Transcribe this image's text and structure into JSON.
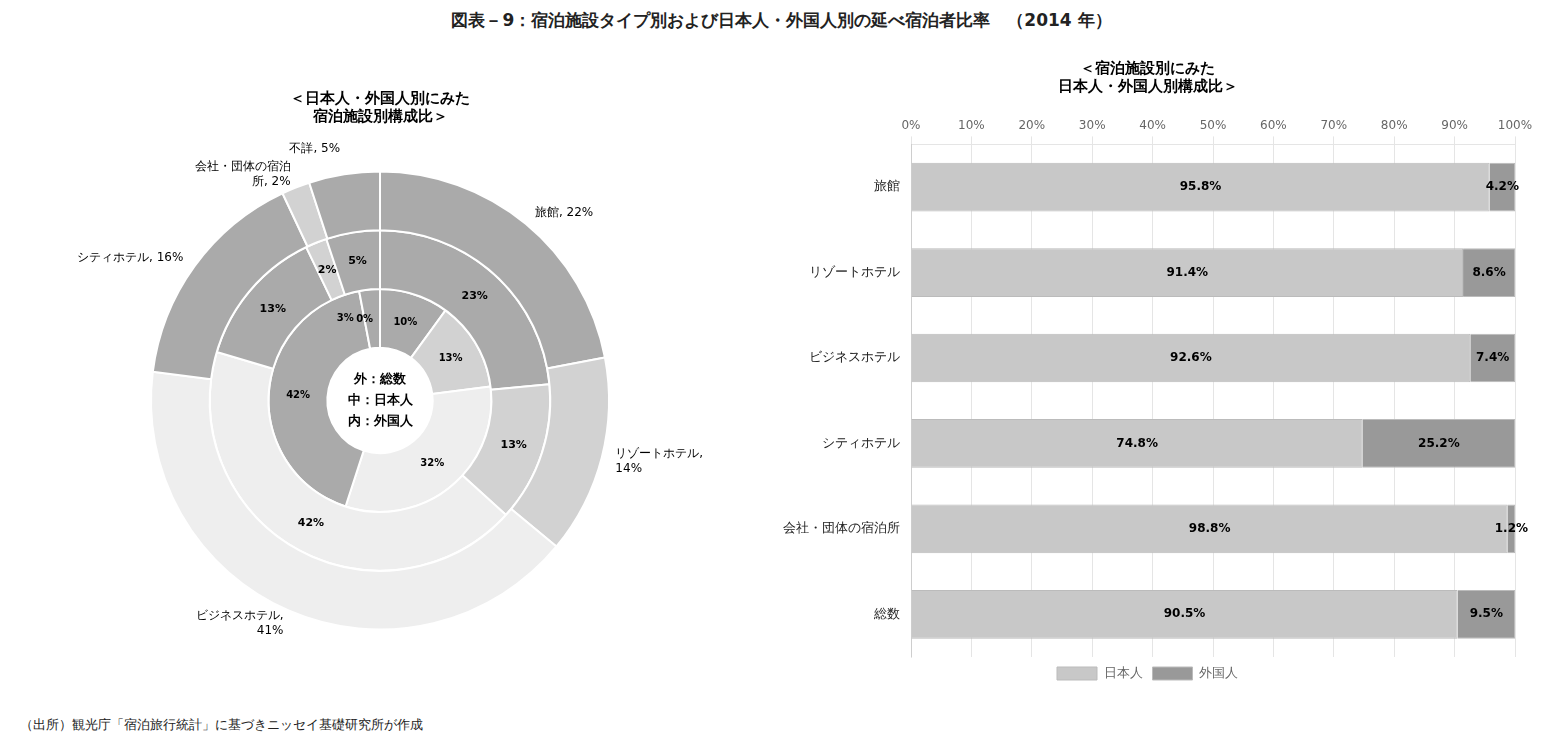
{
  "chart_data": [
    {
      "type": "doughnut",
      "title": "図表－9：宿泊施設タイプ別および日本人・外国人別の延べ宿泊者比率　（2014 年）",
      "subtitle": "＜日本人・外国人別にみた\n宿泊施設別構成比＞",
      "annotations": [
        "外：総数\n中：日本人\n内：外国人",
        "（出所）観光庁「宿泊旅行統計」に基づきニッセイ基礎研究所が作成"
      ],
      "data_labels": true,
      "series": [
        {
          "values": [
            22,
            14,
            41,
            16,
            2,
            5
          ],
          "value_labels": [
            "旅館, 22%",
            "リゾートホテル,\n14%",
            "ビジネスホテル,\n41%",
            "シティホテル, 16%",
            "会社・団体の宿泊\n所, 2%",
            "不詳, 5%"
          ],
          "colors": [
            "#aaaaaa",
            "#d2d2d2",
            "#eeeeee",
            "#aaaaaa",
            "#d2d2d2",
            "#aaaaaa"
          ]
        },
        {
          "values": [
            23,
            13,
            42,
            13,
            2,
            5
          ],
          "value_labels": [
            "23%",
            "13%",
            "42%",
            "13%",
            "2%",
            "5%"
          ],
          "colors": [
            "#aaaaaa",
            "#d2d2d2",
            "#eeeeee",
            "#aaaaaa",
            "#d2d2d2",
            "#aaaaaa"
          ]
        },
        {
          "values": [
            10,
            13,
            32,
            42,
            0,
            3
          ],
          "value_labels": [
            "10%",
            "13%",
            "32%",
            "42%",
            "0%",
            "3%"
          ],
          "colors": [
            "#aaaaaa",
            "#d2d2d2",
            "#eeeeee",
            "#aaaaaa",
            "#d2d2d2",
            "#aaaaaa"
          ]
        }
      ]
    },
    {
      "type": "bar",
      "orientation": "horizontal",
      "stacked": true,
      "subtitle": "＜宿泊施設別にみた\n日本人・外国人別構成比＞",
      "categories": [
        "旅館",
        "リゾートホテル",
        "ビジネスホテル",
        "シティホテル",
        "会社・団体の宿泊所",
        "総数"
      ],
      "series": [
        {
          "name": "日本人",
          "color": "#c8c8c8",
          "values": [
            95.8,
            91.4,
            92.6,
            74.8,
            98.8,
            90.5
          ],
          "value_labels": [
            "95.8%",
            "91.4%",
            "92.6%",
            "74.8%",
            "98.8%",
            "90.5%"
          ]
        },
        {
          "name": "外国人",
          "color": "#999999",
          "values": [
            4.2,
            8.6,
            7.4,
            25.2,
            1.2,
            9.5
          ],
          "value_labels": [
            "4.2%",
            "8.6%",
            "7.4%",
            "25.2%",
            "1.2%",
            "9.5%"
          ]
        }
      ],
      "xlim": [
        0,
        100
      ],
      "xticks": [
        {
          "value": 0,
          "label": "0%"
        },
        {
          "value": 10,
          "label": "10%"
        },
        {
          "value": 20,
          "label": "20%"
        },
        {
          "value": 30,
          "label": "30%"
        },
        {
          "value": 40,
          "label": "40%"
        },
        {
          "value": 50,
          "label": "50%"
        },
        {
          "value": 60,
          "label": "60%"
        },
        {
          "value": 70,
          "label": "70%"
        },
        {
          "value": 80,
          "label": "80%"
        },
        {
          "value": 90,
          "label": "90%"
        },
        {
          "value": 100,
          "label": "100%"
        }
      ],
      "grid": true,
      "legend": "bottom",
      "data_labels": true
    }
  ]
}
